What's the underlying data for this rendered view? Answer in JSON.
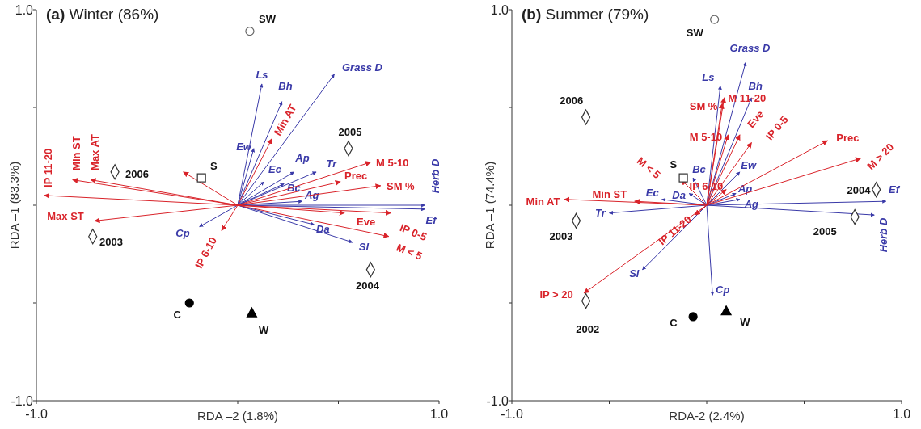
{
  "chart_data": [
    {
      "type": "scatter",
      "title": "(a) Winter (86%)",
      "xlabel": "RDA –2 (1.8%)",
      "ylabel": "RDA –1 (83.3%)",
      "xlim": [
        -1,
        1
      ],
      "ylim": [
        -1,
        1
      ],
      "xticks": [
        {
          "value": -1,
          "label": "-1.0"
        },
        {
          "value": -0.5,
          "label": null
        },
        {
          "value": 0,
          "label": null
        },
        {
          "value": 0.5,
          "label": null
        },
        {
          "value": 1,
          "label": "1.0"
        }
      ],
      "yticks": [
        {
          "value": -1,
          "label": "-1.0"
        },
        {
          "value": -0.5,
          "label": null
        },
        {
          "value": 0,
          "label": null
        },
        {
          "value": 0.5,
          "label": null
        },
        {
          "value": 1,
          "label": "1.0"
        }
      ],
      "series": [
        {
          "type": "line",
          "name": "Ls",
          "color": "#3a3aa8",
          "x": [
            0,
            0.12
          ],
          "values": [
            0,
            0.62
          ]
        },
        {
          "type": "line",
          "name": "Bh",
          "color": "#3a3aa8",
          "x": [
            0,
            0.22
          ],
          "values": [
            0,
            0.53
          ]
        },
        {
          "type": "line",
          "name": "Ew",
          "color": "#3a3aa8",
          "x": [
            0,
            0.08
          ],
          "values": [
            0,
            0.29
          ]
        },
        {
          "type": "line",
          "name": "Grass D",
          "color": "#3a3aa8",
          "x": [
            0,
            0.48
          ],
          "values": [
            0,
            0.67
          ]
        },
        {
          "type": "line",
          "name": "Ec",
          "color": "#3a3aa8",
          "x": [
            0,
            0.13
          ],
          "values": [
            0,
            0.12
          ]
        },
        {
          "type": "line",
          "name": "Ap",
          "color": "#3a3aa8",
          "x": [
            0,
            0.28
          ],
          "values": [
            0,
            0.17
          ]
        },
        {
          "type": "line",
          "name": "Tr",
          "color": "#3a3aa8",
          "x": [
            0,
            0.39
          ],
          "values": [
            0,
            0.17
          ]
        },
        {
          "type": "line",
          "name": "Bc",
          "color": "#3a3aa8",
          "x": [
            0,
            0.23
          ],
          "values": [
            0,
            0.11
          ]
        },
        {
          "type": "line",
          "name": "Ag",
          "color": "#3a3aa8",
          "x": [
            0,
            0.32
          ],
          "values": [
            0,
            0.02
          ]
        },
        {
          "type": "line",
          "name": "Herb D",
          "color": "#3a3aa8",
          "x": [
            0,
            0.93
          ],
          "values": [
            0,
            0.0
          ]
        },
        {
          "type": "line",
          "name": "Ef",
          "color": "#3a3aa8",
          "x": [
            0,
            0.93
          ],
          "values": [
            0,
            -0.02
          ]
        },
        {
          "type": "line",
          "name": "Da",
          "color": "#3a3aa8",
          "x": [
            0,
            0.38
          ],
          "values": [
            0,
            -0.1
          ]
        },
        {
          "type": "line",
          "name": "Sl",
          "color": "#3a3aa8",
          "x": [
            0,
            0.57
          ],
          "values": [
            0,
            -0.19
          ]
        },
        {
          "type": "line",
          "name": "Cp",
          "color": "#3a3aa8",
          "x": [
            0,
            -0.19
          ],
          "values": [
            0,
            -0.11
          ]
        },
        {
          "type": "line",
          "name": "IP 11-20",
          "color": "#d9232a",
          "x": [
            0,
            -0.96
          ],
          "values": [
            0,
            0.05
          ]
        },
        {
          "type": "line",
          "name": "Min ST",
          "color": "#d9232a",
          "x": [
            0,
            -0.82
          ],
          "values": [
            0,
            0.13
          ]
        },
        {
          "type": "line",
          "name": "Max AT",
          "color": "#d9232a",
          "x": [
            0,
            -0.73
          ],
          "values": [
            0,
            0.13
          ]
        },
        {
          "type": "line",
          "name": "Max ST",
          "color": "#d9232a",
          "x": [
            0,
            -0.71
          ],
          "values": [
            0,
            -0.08
          ]
        },
        {
          "type": "line",
          "color": "#d9232a",
          "x": [
            0,
            -0.27
          ],
          "values": [
            0,
            0.17
          ]
        },
        {
          "type": "line",
          "name": "IP 6-10",
          "color": "#d9232a",
          "x": [
            0,
            -0.08
          ],
          "values": [
            0,
            -0.13
          ]
        },
        {
          "type": "line",
          "name": "Min AT",
          "color": "#d9232a",
          "x": [
            0,
            0.17
          ],
          "values": [
            0,
            0.34
          ]
        },
        {
          "type": "line",
          "name": "M 5-10",
          "color": "#d9232a",
          "x": [
            0,
            0.66
          ],
          "values": [
            0,
            0.22
          ]
        },
        {
          "type": "line",
          "name": "Prec",
          "color": "#d9232a",
          "x": [
            0,
            0.51
          ],
          "values": [
            0,
            0.12
          ]
        },
        {
          "type": "line",
          "name": "SM %",
          "color": "#d9232a",
          "x": [
            0,
            0.71
          ],
          "values": [
            0,
            0.1
          ]
        },
        {
          "type": "line",
          "name": "Eve",
          "color": "#d9232a",
          "x": [
            0,
            0.53
          ],
          "values": [
            0,
            -0.04
          ]
        },
        {
          "type": "line",
          "name": "IP 0-5",
          "color": "#d9232a",
          "x": [
            0,
            0.76
          ],
          "values": [
            0,
            -0.04
          ]
        },
        {
          "type": "line",
          "name": "M < 5",
          "color": "#d9232a",
          "x": [
            0,
            0.75
          ],
          "values": [
            0,
            -0.16
          ]
        },
        {
          "type": "scatter",
          "name": "SW",
          "color": "#666666",
          "marker": "circle",
          "x": [
            0.06
          ],
          "values": [
            0.89
          ]
        },
        {
          "type": "scatter",
          "name": "S",
          "color": "#333333",
          "marker": "square",
          "x": [
            -0.18
          ],
          "values": [
            0.14
          ]
        },
        {
          "type": "scatter",
          "name": "2006",
          "color": "#333333",
          "marker": "diamond",
          "x": [
            -0.61
          ],
          "values": [
            0.17
          ]
        },
        {
          "type": "scatter",
          "name": "2003",
          "color": "#333333",
          "marker": "diamond",
          "x": [
            -0.72
          ],
          "values": [
            -0.16
          ]
        },
        {
          "type": "scatter",
          "name": "2005",
          "color": "#333333",
          "marker": "diamond",
          "x": [
            0.55
          ],
          "values": [
            0.29
          ]
        },
        {
          "type": "scatter",
          "name": "2004",
          "color": "#333333",
          "marker": "diamond",
          "x": [
            0.66
          ],
          "values": [
            -0.33
          ]
        },
        {
          "type": "scatter",
          "name": "C",
          "color": "#000000",
          "marker": "circle",
          "x": [
            -0.24
          ],
          "values": [
            -0.5
          ]
        },
        {
          "type": "scatter",
          "name": "W",
          "color": "#000000",
          "marker": "triangle",
          "x": [
            0.07
          ],
          "values": [
            -0.55
          ]
        }
      ]
    },
    {
      "type": "scatter",
      "title": "(b) Summer (79%)",
      "xlabel": "RDA-2 (2.4%)",
      "ylabel": "RDA –1 (74.4%)",
      "xlim": [
        -1,
        1
      ],
      "ylim": [
        -1,
        1
      ],
      "xticks": [
        {
          "value": -1,
          "label": "-1.0"
        },
        {
          "value": -0.5,
          "label": null
        },
        {
          "value": 0,
          "label": null
        },
        {
          "value": 0.5,
          "label": null
        },
        {
          "value": 1,
          "label": "1.0"
        }
      ],
      "yticks": [
        {
          "value": -1,
          "label": "-1.0"
        },
        {
          "value": -0.5,
          "label": null
        },
        {
          "value": 0,
          "label": null
        },
        {
          "value": 0.5,
          "label": null
        },
        {
          "value": 1,
          "label": "1.0"
        }
      ],
      "series": [
        {
          "type": "line",
          "name": "Ls",
          "color": "#3a3aa8",
          "x": [
            0,
            0.07
          ],
          "values": [
            0,
            0.61
          ]
        },
        {
          "type": "line",
          "name": "Grass D",
          "color": "#3a3aa8",
          "x": [
            0,
            0.2
          ],
          "values": [
            0,
            0.73
          ]
        },
        {
          "type": "line",
          "name": "Bh",
          "color": "#3a3aa8",
          "x": [
            0,
            0.23
          ],
          "values": [
            0,
            0.55
          ]
        },
        {
          "type": "line",
          "name": "Ew",
          "color": "#3a3aa8",
          "x": [
            0,
            0.17
          ],
          "values": [
            0,
            0.17
          ]
        },
        {
          "type": "line",
          "name": "Ap",
          "color": "#3a3aa8",
          "x": [
            0,
            0.15
          ],
          "values": [
            0,
            0.06
          ]
        },
        {
          "type": "line",
          "name": "Ag",
          "color": "#3a3aa8",
          "x": [
            0,
            0.17
          ],
          "values": [
            0,
            0.03
          ]
        },
        {
          "type": "line",
          "name": "Ef",
          "color": "#3a3aa8",
          "x": [
            0,
            0.92
          ],
          "values": [
            0,
            0.02
          ]
        },
        {
          "type": "line",
          "name": "Herb D",
          "color": "#3a3aa8",
          "x": [
            0,
            0.86
          ],
          "values": [
            0,
            -0.05
          ]
        },
        {
          "type": "line",
          "name": "Cp",
          "color": "#3a3aa8",
          "x": [
            0,
            0.03
          ],
          "values": [
            0,
            -0.46
          ]
        },
        {
          "type": "line",
          "name": "Bc",
          "color": "#3a3aa8",
          "x": [
            0,
            -0.07
          ],
          "values": [
            0,
            0.14
          ]
        },
        {
          "type": "line",
          "name": "Da",
          "color": "#3a3aa8",
          "x": [
            0,
            -0.09
          ],
          "values": [
            0,
            0.06
          ]
        },
        {
          "type": "line",
          "name": "Ec",
          "color": "#3a3aa8",
          "x": [
            0,
            -0.23
          ],
          "values": [
            0,
            0.03
          ]
        },
        {
          "type": "line",
          "name": "Tr",
          "color": "#3a3aa8",
          "x": [
            0,
            -0.5
          ],
          "values": [
            0,
            -0.04
          ]
        },
        {
          "type": "line",
          "name": "Sl",
          "color": "#3a3aa8",
          "x": [
            0,
            -0.33
          ],
          "values": [
            0,
            -0.33
          ]
        },
        {
          "type": "line",
          "name": "Min AT",
          "color": "#d9232a",
          "x": [
            0,
            -0.73
          ],
          "values": [
            0,
            0.03
          ]
        },
        {
          "type": "line",
          "name": "Min ST",
          "color": "#d9232a",
          "x": [
            0,
            -0.37
          ],
          "values": [
            0,
            0.02
          ]
        },
        {
          "type": "line",
          "name": "M < 5",
          "color": "#d9232a",
          "x": [
            0,
            -0.13
          ],
          "values": [
            0,
            0.13
          ]
        },
        {
          "type": "line",
          "name": "IP 11-20",
          "color": "#d9232a",
          "x": [
            0,
            -0.06
          ],
          "values": [
            0,
            -0.05
          ]
        },
        {
          "type": "line",
          "name": "IP > 20",
          "color": "#d9232a",
          "x": [
            0,
            -0.63
          ],
          "values": [
            0,
            -0.45
          ]
        },
        {
          "type": "line",
          "name": "M 5-10",
          "color": "#d9232a",
          "x": [
            0,
            0.11
          ],
          "values": [
            0,
            0.36
          ]
        },
        {
          "type": "line",
          "name": "M 11-20",
          "color": "#d9232a",
          "x": [
            0,
            0.09
          ],
          "values": [
            0,
            0.55
          ]
        },
        {
          "type": "line",
          "name": "SM %",
          "color": "#d9232a",
          "x": [
            0,
            0.08
          ],
          "values": [
            0,
            0.52
          ]
        },
        {
          "type": "line",
          "name": "Eve",
          "color": "#d9232a",
          "x": [
            0,
            0.17
          ],
          "values": [
            0,
            0.36
          ]
        },
        {
          "type": "line",
          "name": "IP 0-5",
          "color": "#d9232a",
          "x": [
            0,
            0.23
          ],
          "values": [
            0,
            0.32
          ]
        },
        {
          "type": "line",
          "name": "IP 6-10",
          "color": "#d9232a",
          "x": [
            0,
            0.1
          ],
          "values": [
            0,
            0.08
          ]
        },
        {
          "type": "line",
          "name": "Prec",
          "color": "#d9232a",
          "x": [
            0,
            0.62
          ],
          "values": [
            0,
            0.33
          ]
        },
        {
          "type": "line",
          "name": "M > 20",
          "color": "#d9232a",
          "x": [
            0,
            0.79
          ],
          "values": [
            0,
            0.24
          ]
        },
        {
          "type": "scatter",
          "name": "SW",
          "color": "#666666",
          "marker": "circle",
          "x": [
            0.04
          ],
          "values": [
            0.95
          ]
        },
        {
          "type": "scatter",
          "name": "S",
          "color": "#333333",
          "marker": "square",
          "x": [
            -0.12
          ],
          "values": [
            0.14
          ]
        },
        {
          "type": "scatter",
          "name": "2006",
          "color": "#333333",
          "marker": "diamond",
          "x": [
            -0.62
          ],
          "values": [
            0.45
          ]
        },
        {
          "type": "scatter",
          "name": "2003",
          "color": "#333333",
          "marker": "diamond",
          "x": [
            -0.67
          ],
          "values": [
            -0.08
          ]
        },
        {
          "type": "scatter",
          "name": "2002",
          "color": "#333333",
          "marker": "diamond",
          "x": [
            -0.62
          ],
          "values": [
            -0.49
          ]
        },
        {
          "type": "scatter",
          "name": "2004",
          "color": "#333333",
          "marker": "diamond",
          "x": [
            0.87
          ],
          "values": [
            0.08
          ]
        },
        {
          "type": "scatter",
          "name": "2005",
          "color": "#333333",
          "marker": "diamond",
          "x": [
            0.76
          ],
          "values": [
            -0.06
          ]
        },
        {
          "type": "scatter",
          "name": "C",
          "color": "#000000",
          "marker": "circle",
          "x": [
            -0.07
          ],
          "values": [
            -0.57
          ]
        },
        {
          "type": "scatter",
          "name": "W",
          "color": "#000000",
          "marker": "triangle",
          "x": [
            0.1
          ],
          "values": [
            -0.54
          ]
        }
      ]
    }
  ]
}
